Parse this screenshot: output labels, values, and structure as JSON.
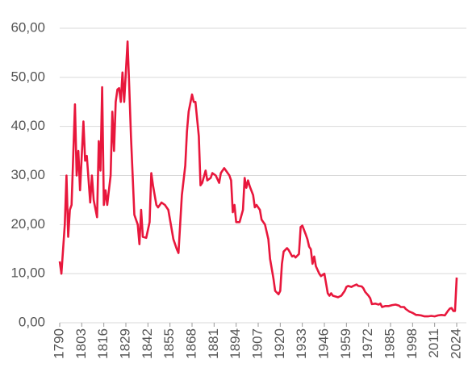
{
  "chart_data": {
    "type": "line",
    "color": "#e8173c",
    "grid": true,
    "x": [
      1790,
      1791,
      1793,
      1794,
      1795,
      1796,
      1797,
      1799,
      1800,
      1801,
      1802,
      1804,
      1805,
      1806,
      1808,
      1809,
      1810,
      1812,
      1813,
      1814,
      1815,
      1816,
      1817,
      1818,
      1820,
      1821,
      1822,
      1823,
      1824,
      1825,
      1826,
      1827,
      1828,
      1830,
      1831,
      1832,
      1834,
      1836,
      1837,
      1838,
      1839,
      1841,
      1843,
      1844,
      1845,
      1847,
      1848,
      1850,
      1852,
      1854,
      1856,
      1857,
      1859,
      1860,
      1862,
      1864,
      1865,
      1866,
      1868,
      1869,
      1870,
      1872,
      1873,
      1874,
      1876,
      1877,
      1879,
      1880,
      1882,
      1884,
      1885,
      1886,
      1887,
      1890,
      1891,
      1892,
      1893,
      1894,
      1896,
      1898,
      1899,
      1900,
      1901,
      1902,
      1904,
      1905,
      1906,
      1908,
      1909,
      1911,
      1913,
      1914,
      1916,
      1917,
      1919,
      1920,
      1921,
      1922,
      1924,
      1925,
      1927,
      1928,
      1929,
      1931,
      1932,
      1933,
      1935,
      1936,
      1937,
      1938,
      1939,
      1940,
      1941,
      1943,
      1944,
      1946,
      1947,
      1948,
      1949,
      1950,
      1951,
      1954,
      1956,
      1958,
      1959,
      1960,
      1962,
      1963,
      1965,
      1966,
      1968,
      1969,
      1970,
      1972,
      1973,
      1974,
      1976,
      1978,
      1979,
      1980,
      1982,
      1984,
      1986,
      1988,
      1990,
      1991,
      1993,
      1994,
      1996,
      1998,
      2000,
      2001,
      2003,
      2005,
      2007,
      2009,
      2011,
      2013,
      2015,
      2017,
      2019,
      2020,
      2021,
      2022,
      2023,
      2024
    ],
    "values": [
      12.5,
      10,
      20,
      30,
      17.5,
      23,
      24,
      44.5,
      30,
      35,
      27,
      41,
      33,
      34,
      24.5,
      30,
      25,
      21.5,
      37,
      31,
      48,
      24,
      27,
      24,
      30,
      43,
      35,
      45,
      47.5,
      47.8,
      45,
      51,
      45,
      57.3,
      48,
      38,
      22,
      20,
      16,
      23,
      17.5,
      17.3,
      20.5,
      30.5,
      28,
      24,
      23.5,
      24.5,
      24,
      23,
      19,
      17,
      15,
      14.2,
      26,
      32,
      39,
      43,
      46.5,
      45,
      45,
      38,
      28,
      28.5,
      31,
      29,
      29.5,
      30.5,
      30,
      28.5,
      30.5,
      31,
      31.5,
      30,
      29,
      22.5,
      24,
      20.5,
      20.5,
      23,
      29.5,
      27.5,
      29,
      27.8,
      26,
      23.5,
      24,
      23,
      21,
      20,
      17,
      13,
      9,
      6.5,
      5.8,
      6.5,
      12,
      14.5,
      15.2,
      14.8,
      13.5,
      13.7,
      13.3,
      14,
      19.5,
      19.8,
      18,
      17,
      15.5,
      15,
      12,
      13.5,
      11.5,
      10,
      9.5,
      10,
      8,
      6,
      5.5,
      6,
      5.5,
      5.2,
      5.5,
      6.5,
      7.3,
      7.5,
      7.3,
      7.5,
      7.8,
      7.5,
      7.4,
      7,
      6.3,
      5.5,
      5,
      3.8,
      3.9,
      3.7,
      3.9,
      3.2,
      3.4,
      3.4,
      3.6,
      3.7,
      3.5,
      3.2,
      3.2,
      2.8,
      2.3,
      2,
      1.6,
      1.6,
      1.5,
      1.3,
      1.3,
      1.4,
      1.3,
      1.5,
      1.6,
      1.5,
      2.5,
      2.9,
      3,
      2.4,
      2.4,
      9.2
    ],
    "xlim": [
      1790,
      2024
    ],
    "xticks": [
      1790,
      1803,
      1816,
      1829,
      1842,
      1855,
      1868,
      1881,
      1894,
      1907,
      1920,
      1933,
      1946,
      1959,
      1972,
      1985,
      1998,
      2011,
      2024
    ],
    "ylim": [
      0,
      60
    ],
    "yticks": [
      {
        "value": 0,
        "label": "0,00"
      },
      {
        "value": 10,
        "label": "10,00"
      },
      {
        "value": 20,
        "label": "20,00"
      },
      {
        "value": 30,
        "label": "30,00"
      },
      {
        "value": 40,
        "label": "40,00"
      },
      {
        "value": 50,
        "label": "50,00"
      },
      {
        "value": 60,
        "label": "60,00"
      }
    ]
  }
}
